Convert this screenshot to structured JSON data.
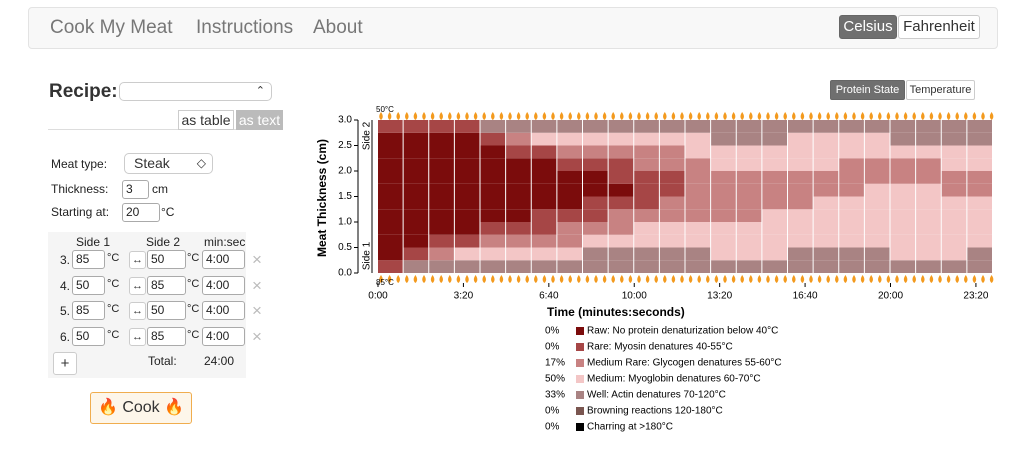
{
  "nav": {
    "brand": "Cook My Meat",
    "links": [
      "Instructions",
      "About"
    ],
    "units": [
      "Celsius",
      "Fahrenheit"
    ]
  },
  "recipe": {
    "label": "Recipe:",
    "views": [
      "as table",
      "as text"
    ]
  },
  "form": {
    "meat_label": "Meat type:",
    "meat": "Steak",
    "thickness_label": "Thickness:",
    "thickness": 3,
    "thickness_unit": "cm",
    "start_label": "Starting at:",
    "start": 20,
    "temp_unit": "°C",
    "arrow": "↔",
    "remove": "×"
  },
  "steps": {
    "headers": [
      "Side 1",
      "Side 2",
      "min:sec"
    ],
    "rows": [
      {
        "number": "3.",
        "side1": 85,
        "side2": 50,
        "time": "4:00"
      },
      {
        "number": "4.",
        "side1": 50,
        "side2": 85,
        "time": "4:00"
      },
      {
        "number": "5.",
        "side1": 85,
        "side2": 50,
        "time": "4:00"
      },
      {
        "number": "6.",
        "side1": 50,
        "side2": 85,
        "time": "4:00"
      }
    ],
    "add": "+",
    "total_label": "Total:",
    "total": "24:00"
  },
  "cook": "Cook",
  "view_toggle": [
    "Protein State",
    "Temperature"
  ],
  "chart_data": {
    "type": "heatmap",
    "xlabel": "Time (minutes:seconds)",
    "ylabel": "Meat Thickness (cm)",
    "top_label": "50°C",
    "bottom_label": "85°C",
    "side_labels": [
      "Side 2",
      "Side 1"
    ],
    "xlim": [
      0,
      1440
    ],
    "ylim": [
      0,
      3
    ],
    "xticks": [
      {
        "value": 0,
        "label": "0:00"
      },
      {
        "value": 200,
        "label": "3:20"
      },
      {
        "value": 400,
        "label": "6:40"
      },
      {
        "value": 600,
        "label": "10:00"
      },
      {
        "value": 800,
        "label": "13:20"
      },
      {
        "value": 1000,
        "label": "16:40"
      },
      {
        "value": 1200,
        "label": "20:00"
      },
      {
        "value": 1400,
        "label": "23:20"
      }
    ],
    "yticks": [
      {
        "value": 0,
        "label": "0.0"
      },
      0.5,
      {
        "value": 1,
        "label": "1.0"
      },
      1.5,
      {
        "value": 2,
        "label": "2.0"
      },
      2.5,
      {
        "value": 3,
        "label": "3.0"
      }
    ],
    "x": [
      0,
      60,
      120,
      180,
      240,
      300,
      360,
      420,
      480,
      540,
      600,
      660,
      720,
      780,
      840,
      900,
      960,
      1020,
      1080,
      1140,
      1200,
      1260,
      1320,
      1380
    ],
    "cells": [
      [
        1,
        0,
        0,
        0,
        0,
        0,
        0,
        0,
        0,
        0,
        0,
        1
      ],
      [
        4,
        1,
        0,
        0,
        0,
        0,
        0,
        0,
        0,
        0,
        0,
        1
      ],
      [
        4,
        2,
        1,
        0,
        0,
        0,
        0,
        0,
        0,
        0,
        0,
        1
      ],
      [
        4,
        3,
        1,
        0,
        0,
        0,
        0,
        0,
        0,
        0,
        0,
        1
      ],
      [
        4,
        3,
        2,
        1,
        0,
        0,
        0,
        0,
        0,
        0,
        1,
        4
      ],
      [
        4,
        3,
        2,
        1,
        0,
        0,
        0,
        0,
        0,
        1,
        2,
        4
      ],
      [
        4,
        3,
        2,
        1,
        1,
        0,
        0,
        0,
        0,
        1,
        3,
        4
      ],
      [
        4,
        3,
        2,
        2,
        1,
        0,
        0,
        0,
        1,
        2,
        3,
        4
      ],
      [
        4,
        4,
        3,
        2,
        1,
        1,
        0,
        0,
        1,
        2,
        3,
        4
      ],
      [
        4,
        4,
        3,
        2,
        2,
        1,
        0,
        1,
        1,
        2,
        3,
        4
      ],
      [
        4,
        4,
        3,
        3,
        2,
        1,
        1,
        1,
        2,
        2,
        3,
        4
      ],
      [
        4,
        4,
        3,
        3,
        2,
        2,
        1,
        1,
        2,
        2,
        3,
        4
      ],
      [
        4,
        4,
        3,
        3,
        2,
        2,
        2,
        2,
        2,
        3,
        3,
        4
      ],
      [
        4,
        3,
        3,
        3,
        2,
        2,
        2,
        2,
        3,
        3,
        4,
        4
      ],
      [
        4,
        3,
        3,
        3,
        2,
        2,
        2,
        2,
        3,
        3,
        4,
        4
      ],
      [
        4,
        3,
        3,
        3,
        3,
        2,
        2,
        2,
        3,
        3,
        4,
        4
      ],
      [
        4,
        4,
        3,
        3,
        3,
        2,
        2,
        2,
        3,
        3,
        3,
        4
      ],
      [
        4,
        4,
        3,
        3,
        3,
        3,
        2,
        2,
        3,
        3,
        3,
        4
      ],
      [
        4,
        4,
        3,
        3,
        3,
        3,
        2,
        2,
        2,
        3,
        3,
        4
      ],
      [
        4,
        4,
        3,
        3,
        3,
        3,
        3,
        2,
        2,
        3,
        3,
        4
      ],
      [
        4,
        3,
        3,
        3,
        3,
        3,
        3,
        2,
        2,
        3,
        4,
        4
      ],
      [
        4,
        3,
        3,
        3,
        3,
        3,
        3,
        2,
        2,
        3,
        4,
        4
      ],
      [
        4,
        3,
        3,
        3,
        3,
        3,
        2,
        2,
        3,
        3,
        4,
        4
      ],
      [
        4,
        4,
        3,
        3,
        3,
        3,
        2,
        2,
        3,
        3,
        4,
        4
      ]
    ],
    "states": {
      "names": [
        "Raw: No protein denaturization below 40°C",
        "Rare: Myosin denatures 40-55°C",
        "Medium Rare: Glycogen denatures 55-60°C",
        "Medium: Myoglobin denatures 60-70°C",
        "Well: Actin denatures 70-120°C",
        "Browning reactions 120-180°C",
        "Charring at >180°C"
      ],
      "colors": [
        "#7b0c0c",
        "#a64646",
        "#c88282",
        "#f3c6c6",
        "#a98383",
        "#7a5650",
        "#000000"
      ],
      "values": [
        0,
        0,
        17,
        50,
        33,
        0,
        0
      ],
      "value_labels": [
        "0%",
        "0%",
        "17%",
        "50%",
        "33%",
        "0%",
        "0%"
      ]
    }
  }
}
